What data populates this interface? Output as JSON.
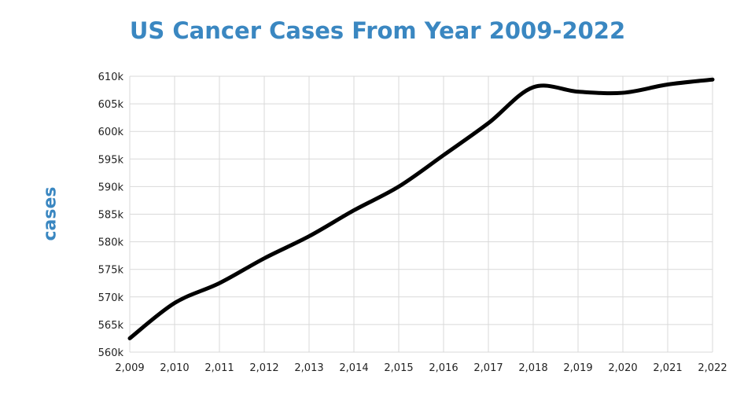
{
  "chart_data": {
    "type": "line",
    "title": "US Cancer Cases From Year 2009-2022",
    "xlabel": "",
    "ylabel": "cases",
    "x": [
      2009,
      2010,
      2011,
      2012,
      2013,
      2014,
      2015,
      2016,
      2017,
      2018,
      2019,
      2020,
      2021,
      2022
    ],
    "series": [
      {
        "values": [
          562500,
          568900,
          572500,
          577000,
          581000,
          585700,
          590000,
          595700,
          601500,
          608000,
          607200,
          607000,
          608500,
          609400
        ]
      }
    ],
    "x_tick_labels": [
      "2,009",
      "2,010",
      "2,011",
      "2,012",
      "2,013",
      "2,014",
      "2,015",
      "2,016",
      "2,017",
      "2,018",
      "2,019",
      "2,020",
      "2,021",
      "2,022"
    ],
    "y_tick_labels": [
      "560k",
      "565k",
      "570k",
      "575k",
      "580k",
      "585k",
      "590k",
      "595k",
      "600k",
      "605k",
      "610k"
    ],
    "y_ticks": [
      560000,
      565000,
      570000,
      575000,
      580000,
      585000,
      590000,
      595000,
      600000,
      605000,
      610000
    ],
    "xlim": [
      2009,
      2022
    ],
    "ylim": [
      560000,
      610000
    ],
    "grid": true,
    "legend": "none",
    "line_color": "#000000",
    "title_color": "#3a87c1",
    "grid_color": "#d9d9d9"
  }
}
